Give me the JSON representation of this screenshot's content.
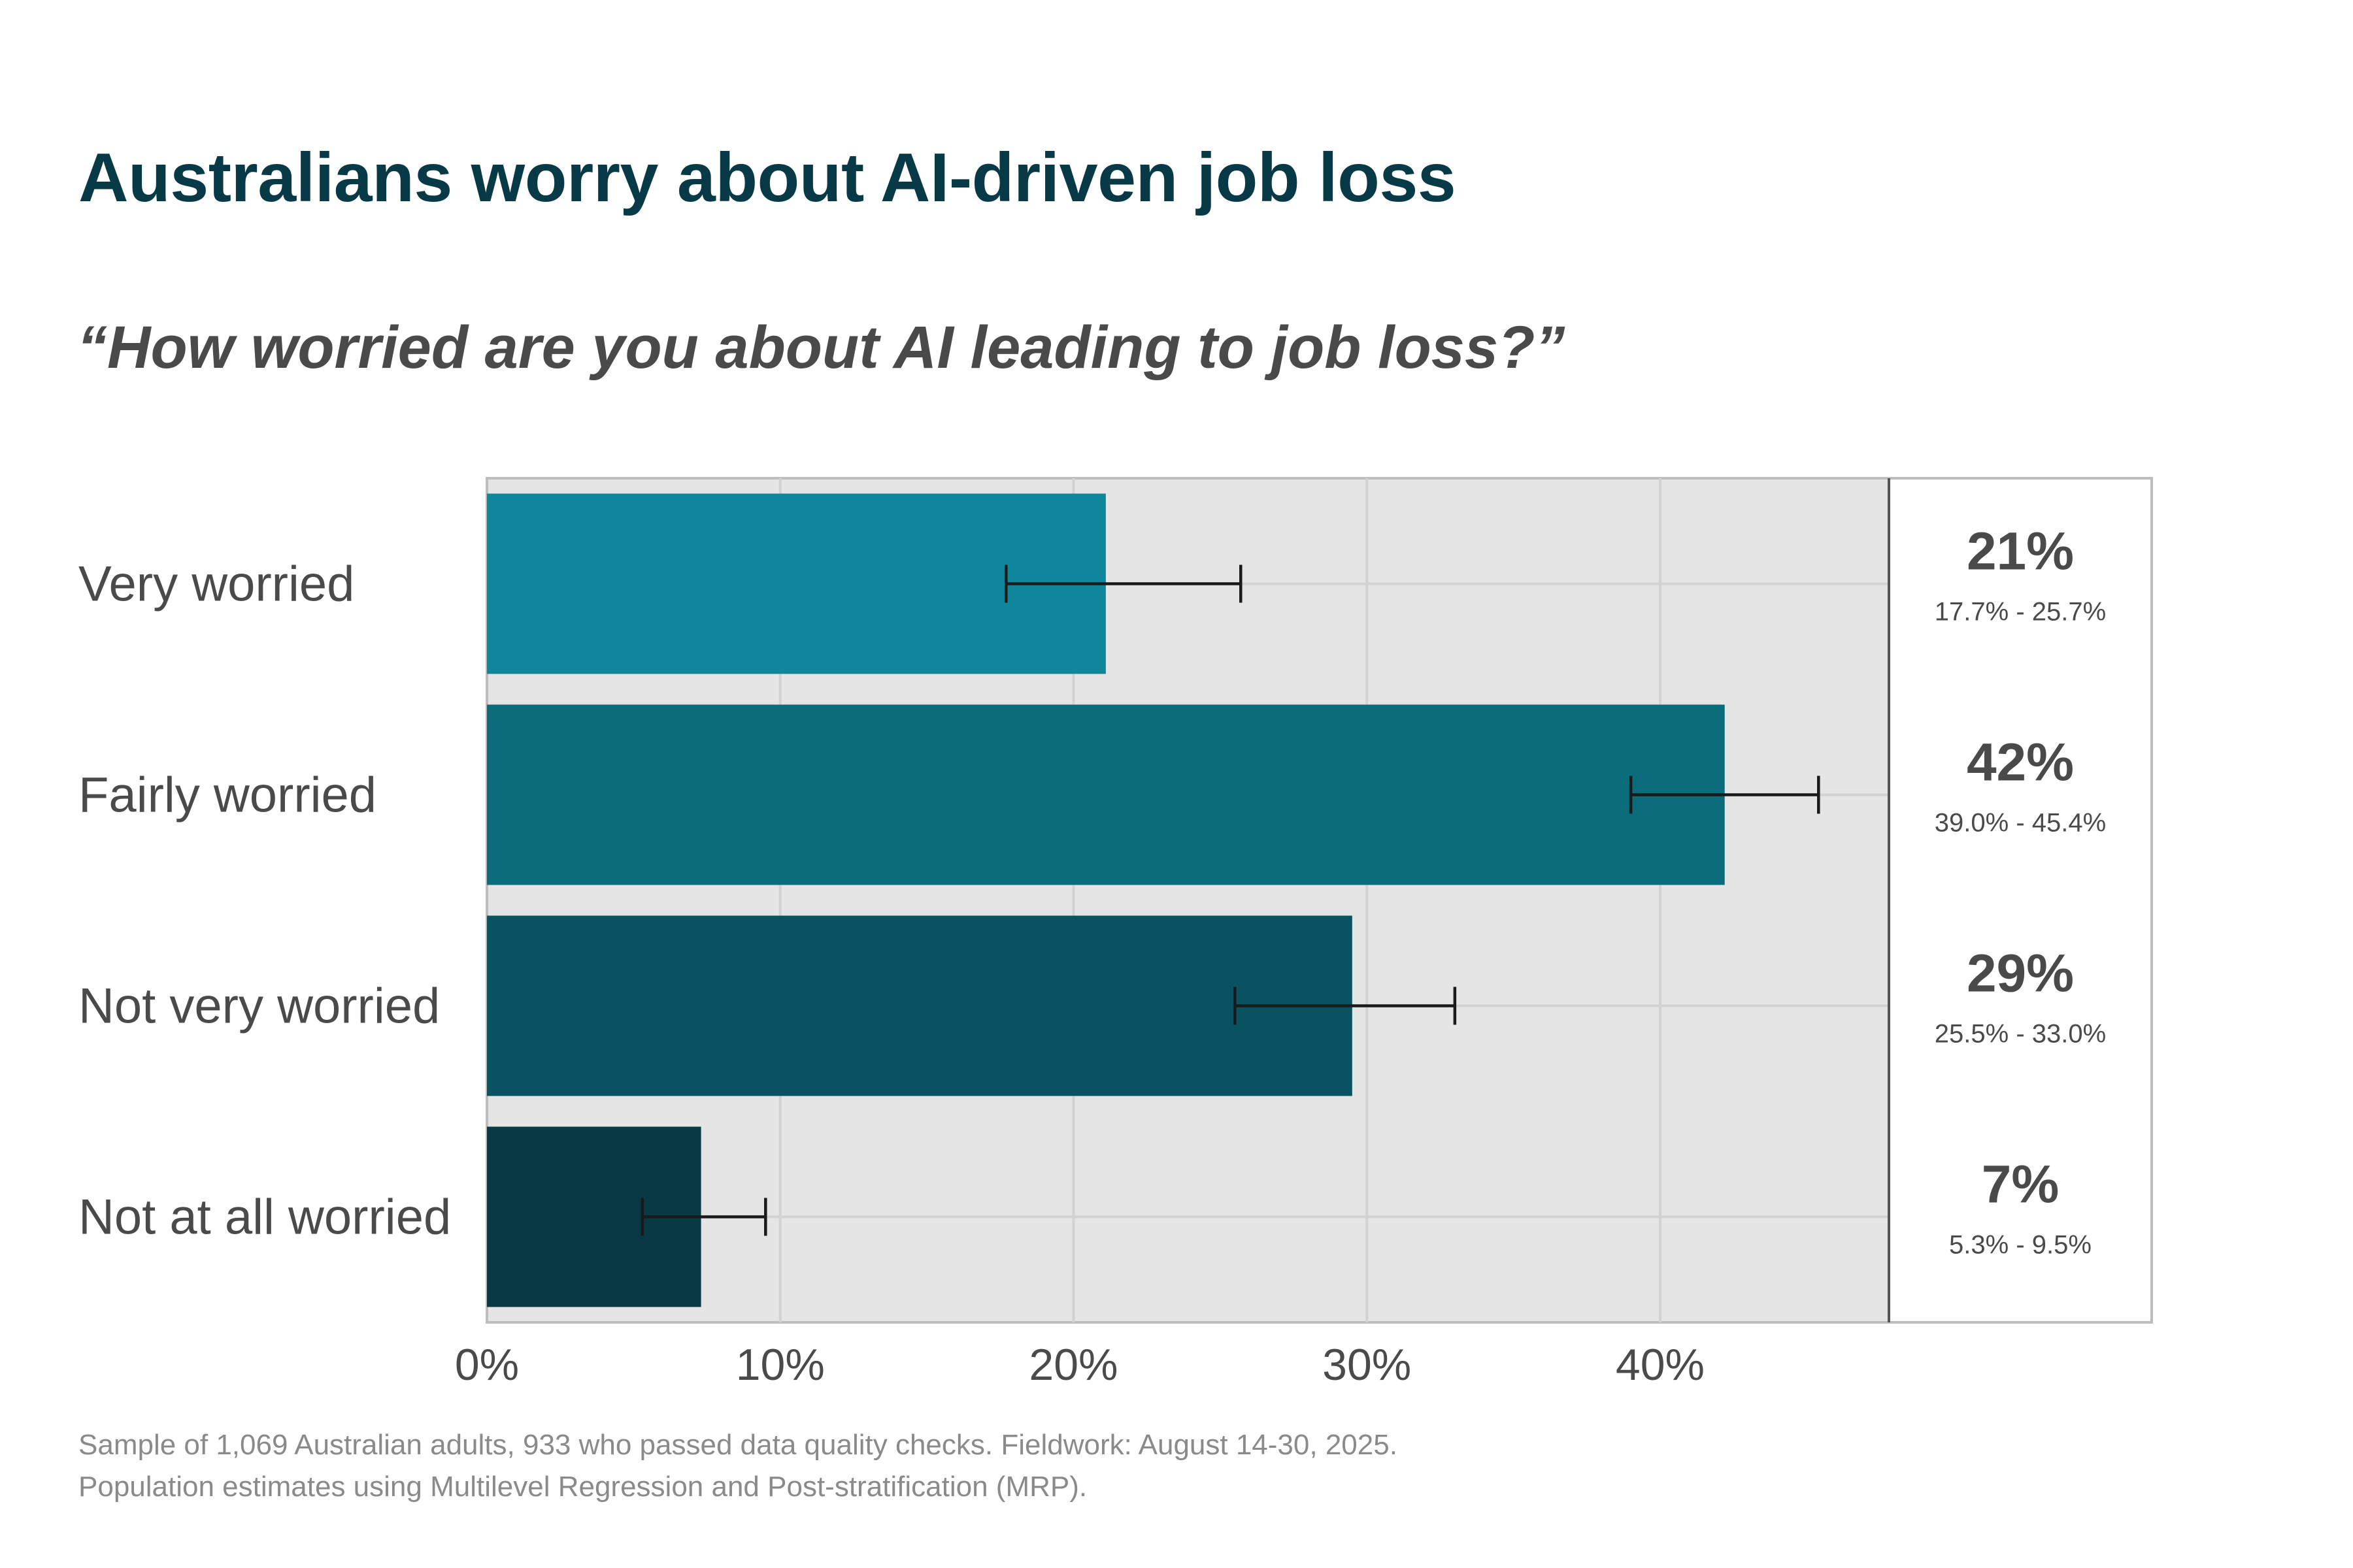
{
  "title": "Australians worry about AI-driven job loss",
  "subtitle": "“How worried are you about AI leading to job loss?”",
  "chart_data": {
    "type": "bar",
    "orientation": "horizontal",
    "categories": [
      "Very worried",
      "Fairly worried",
      "Not very worried",
      "Not at all worried"
    ],
    "values": [
      21.1,
      42.2,
      29.5,
      7.3
    ],
    "value_labels": [
      "21%",
      "42%",
      "29%",
      "7%"
    ],
    "ci_low": [
      17.7,
      39.0,
      25.5,
      5.3
    ],
    "ci_high": [
      25.7,
      45.4,
      33.0,
      9.5
    ],
    "ci_labels": [
      "17.7% - 25.7%",
      "39.0% - 45.4%",
      "25.5% - 33.0%",
      "5.3% - 9.5%"
    ],
    "colors": [
      "#0e879c",
      "#0b6c7c",
      "#08535f",
      "#073a45"
    ],
    "xlim": [
      0,
      47.8
    ],
    "xticks": [
      0,
      10,
      20,
      30,
      40
    ],
    "xtick_labels": [
      "0%",
      "10%",
      "20%",
      "30%",
      "40%"
    ],
    "grid": true,
    "panel_background": "#e5e5e5"
  },
  "footnote": {
    "line1": "Sample of 1,069 Australian adults, 933 who passed data quality checks. Fieldwork: August 14-30, 2025.",
    "line2": "Population estimates using Multilevel Regression and Post-stratification (MRP)."
  }
}
